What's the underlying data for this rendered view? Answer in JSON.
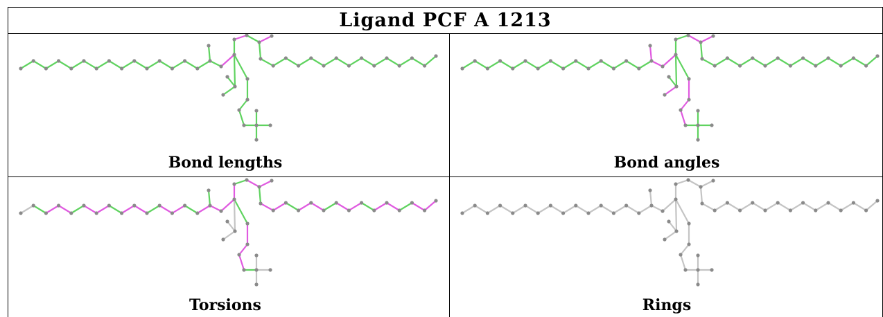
{
  "title": "Ligand PCF A 1213",
  "colors": {
    "border": "#000000",
    "atom": "#8a8a8a",
    "bond_ok": "#5fd35f",
    "bond_flagged": "#e05ae0",
    "bond_neutral": "#c4c4c4"
  },
  "panels": [
    {
      "caption": "Bond lengths",
      "mode": "lengths"
    },
    {
      "caption": "Bond angles",
      "mode": "angles"
    },
    {
      "caption": "Torsions",
      "mode": "torsions"
    },
    {
      "caption": "Rings",
      "mode": "rings"
    }
  ]
}
